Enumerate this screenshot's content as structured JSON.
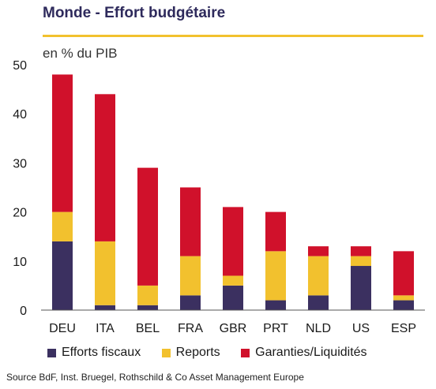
{
  "header": {
    "title": "Monde - Effort budgétaire",
    "subtitle": "en % du PIB"
  },
  "source": "Source BdF, Inst. Bruegel, Rothschild & Co Asset Management Europe",
  "colors": {
    "efforts": "#3b3060",
    "reports": "#f2c12e",
    "garanties": "#d0112b",
    "accent_rule": "#f2c12e"
  },
  "chart_data": {
    "type": "bar",
    "stacked": true,
    "categories": [
      "DEU",
      "ITA",
      "BEL",
      "FRA",
      "GBR",
      "PRT",
      "NLD",
      "US",
      "ESP"
    ],
    "series": [
      {
        "name": "Efforts fiscaux",
        "values": [
          14,
          1,
          1,
          3,
          5,
          2,
          3,
          9,
          2
        ]
      },
      {
        "name": "Reports",
        "values": [
          6,
          13,
          4,
          8,
          2,
          10,
          8,
          2,
          1
        ]
      },
      {
        "name": "Garanties/Liquidités",
        "values": [
          28,
          30,
          24,
          14,
          14,
          8,
          2,
          2,
          9
        ]
      }
    ],
    "yticks": [
      0,
      10,
      20,
      30,
      40,
      50
    ],
    "ylim": [
      0,
      50
    ],
    "legend_position": "bottom",
    "grid": false
  }
}
